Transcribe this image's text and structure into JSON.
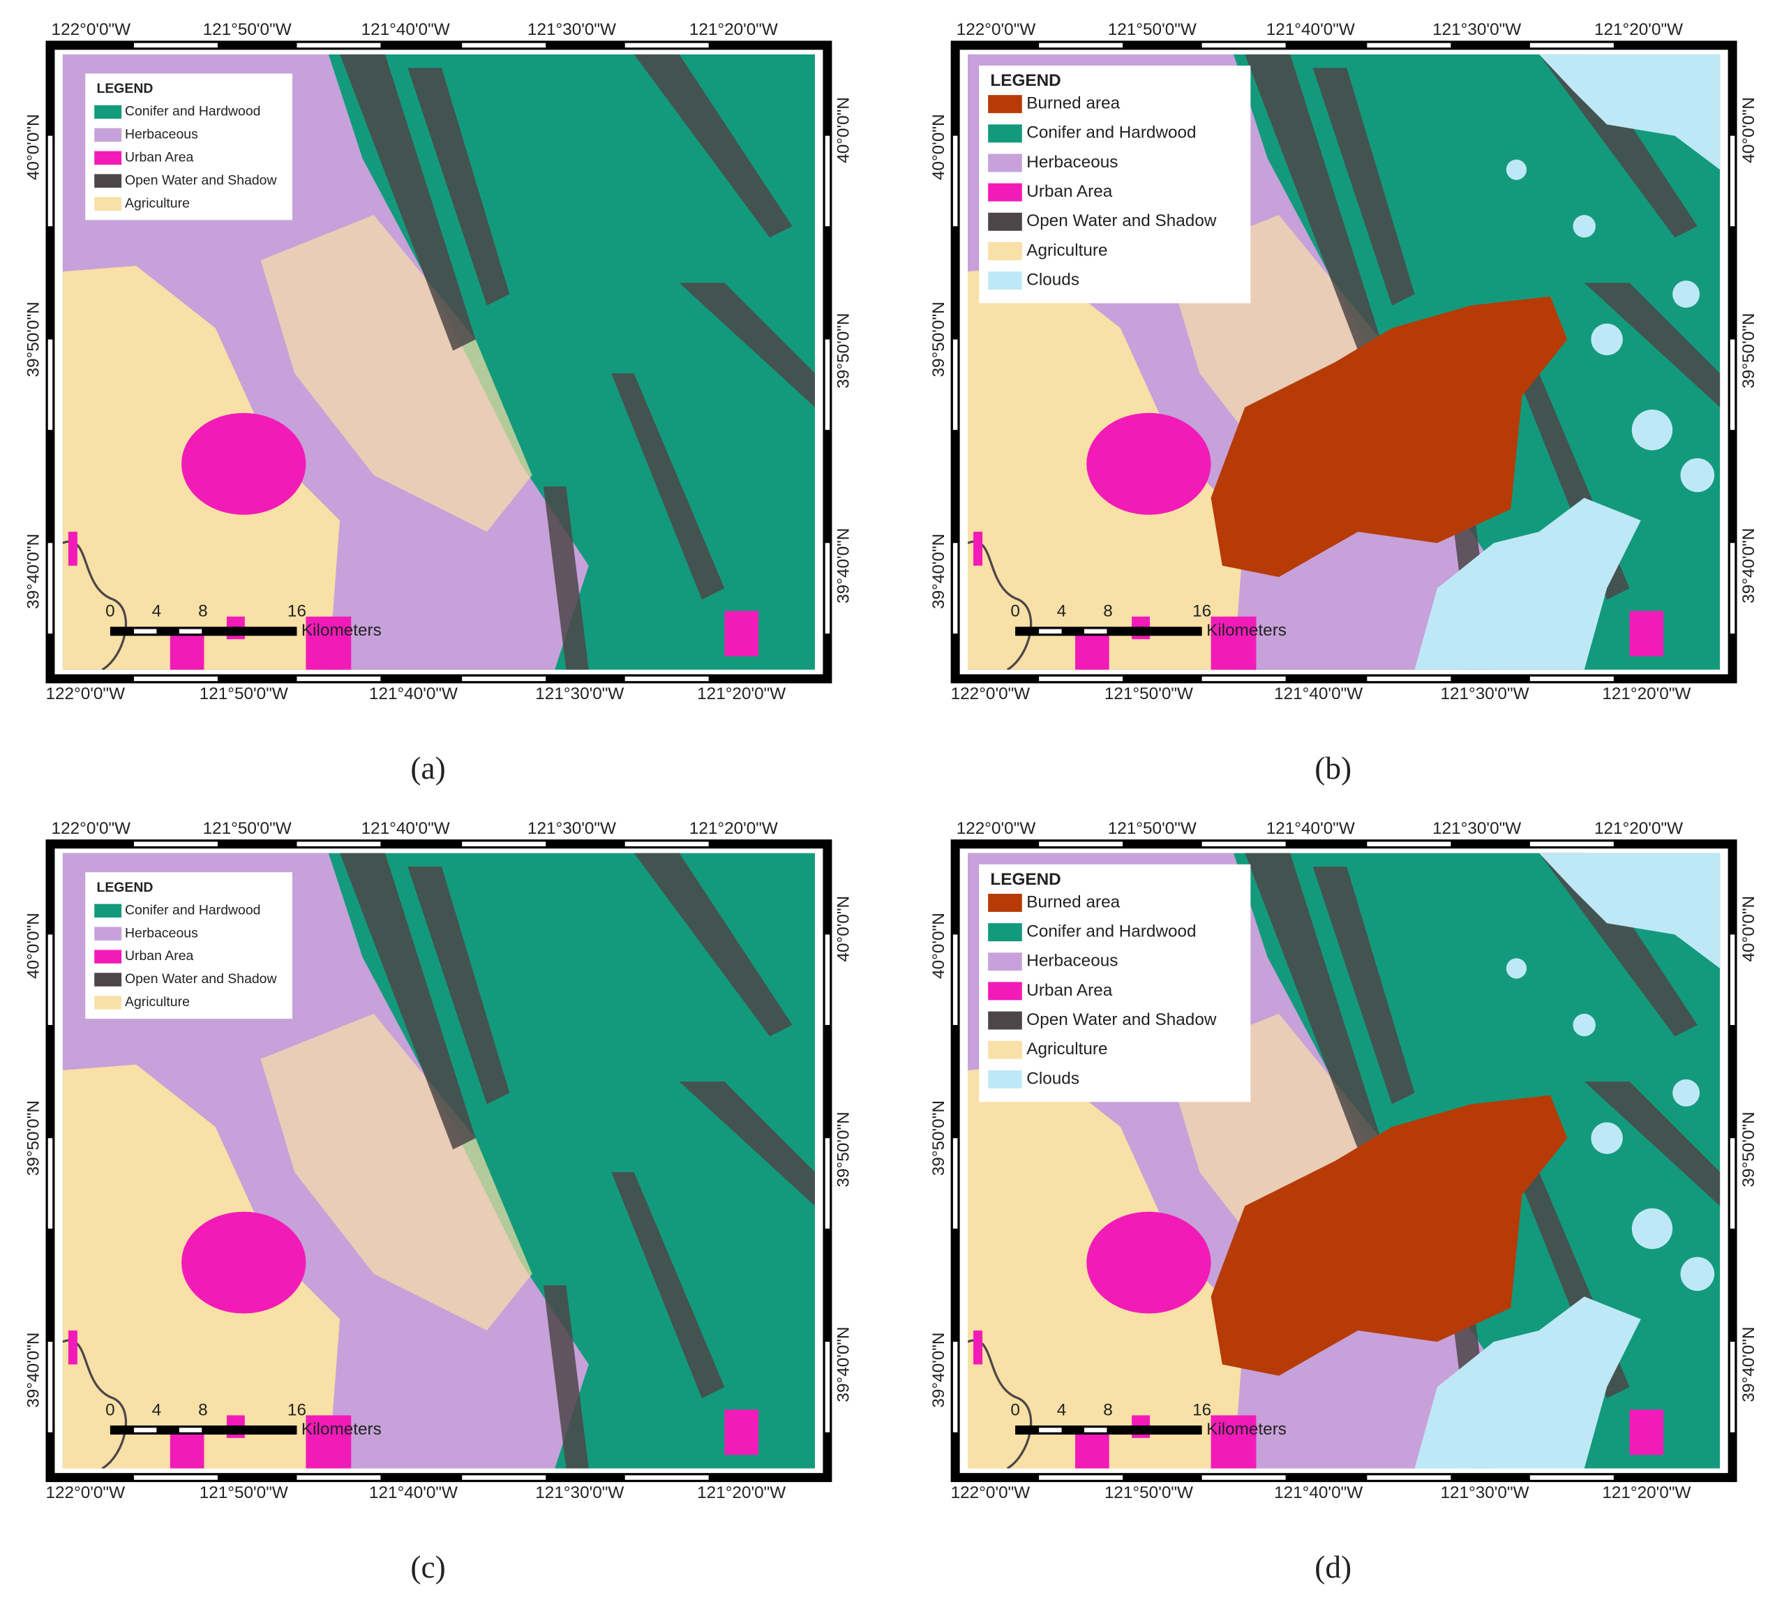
{
  "axes": {
    "x_labels": [
      "122°0'0\"W",
      "121°50'0\"W",
      "121°40'0\"W",
      "121°30'0\"W",
      "121°20'0\"W"
    ],
    "y_labels": [
      "40°0'0\"N",
      "39°50'0\"N",
      "39°40'0\"N"
    ],
    "scale_labels": [
      "0",
      "4",
      "8",
      "16"
    ],
    "scale_unit": "Kilometers"
  },
  "panels": [
    {
      "label": "(a)",
      "legend": {
        "title": "LEGEND",
        "items": [
          {
            "name": "Conifer and Hardwood",
            "color": "#139a7c"
          },
          {
            "name": "Herbaceous",
            "color": "#c7a1d9"
          },
          {
            "name": "Urban Area",
            "color": "#f21bb8"
          },
          {
            "name": "Open Water and Shadow",
            "color": "#4c4649"
          },
          {
            "name": "Agriculture",
            "color": "#f8e0a6"
          }
        ]
      }
    },
    {
      "label": "(b)",
      "legend": {
        "title": "LEGEND",
        "items": [
          {
            "name": "Burned area",
            "color": "#b63b06"
          },
          {
            "name": "Conifer and Hardwood",
            "color": "#139a7c"
          },
          {
            "name": "Herbaceous",
            "color": "#c7a1d9"
          },
          {
            "name": "Urban Area",
            "color": "#f21bb8"
          },
          {
            "name": "Open Water and Shadow",
            "color": "#4c4649"
          },
          {
            "name": "Agriculture",
            "color": "#f8e0a6"
          },
          {
            "name": "Clouds",
            "color": "#bfe8f6"
          }
        ]
      }
    },
    {
      "label": "(c)",
      "legend": {
        "title": "LEGEND",
        "items": [
          {
            "name": "Conifer and Hardwood",
            "color": "#139a7c"
          },
          {
            "name": "Herbaceous",
            "color": "#c7a1d9"
          },
          {
            "name": "Urban Area",
            "color": "#f21bb8"
          },
          {
            "name": "Open Water and Shadow",
            "color": "#4c4649"
          },
          {
            "name": "Agriculture",
            "color": "#f8e0a6"
          }
        ]
      }
    },
    {
      "label": "(d)",
      "legend": {
        "title": "LEGEND",
        "items": [
          {
            "name": "Burned area",
            "color": "#b63b06"
          },
          {
            "name": "Conifer and Hardwood",
            "color": "#139a7c"
          },
          {
            "name": "Herbaceous",
            "color": "#c7a1d9"
          },
          {
            "name": "Urban Area",
            "color": "#f21bb8"
          },
          {
            "name": "Open Water and Shadow",
            "color": "#4c4649"
          },
          {
            "name": "Agriculture",
            "color": "#f8e0a6"
          },
          {
            "name": "Clouds",
            "color": "#bfe8f6"
          }
        ]
      }
    }
  ]
}
